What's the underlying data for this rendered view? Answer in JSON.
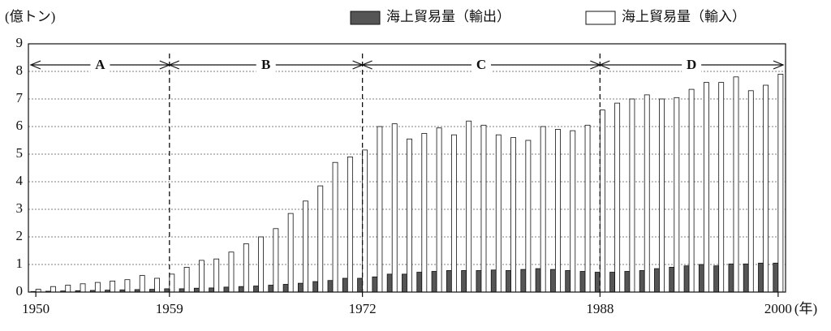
{
  "chart_data": {
    "type": "bar",
    "y_unit": "(億トン)",
    "x_unit": "(年)",
    "x": [
      1950,
      1951,
      1952,
      1953,
      1954,
      1955,
      1956,
      1957,
      1958,
      1959,
      1960,
      1961,
      1962,
      1963,
      1964,
      1965,
      1966,
      1967,
      1968,
      1969,
      1970,
      1971,
      1972,
      1973,
      1974,
      1975,
      1976,
      1977,
      1978,
      1979,
      1980,
      1981,
      1982,
      1983,
      1984,
      1985,
      1986,
      1987,
      1988,
      1989,
      1990,
      1991,
      1992,
      1993,
      1994,
      1995,
      1996,
      1997,
      1998,
      1999,
      2000
    ],
    "series": [
      {
        "name": "海上貿易量（輸出）",
        "color": "#555555",
        "values": [
          0.02,
          0.03,
          0.04,
          0.05,
          0.06,
          0.07,
          0.08,
          0.09,
          0.1,
          0.12,
          0.12,
          0.14,
          0.15,
          0.18,
          0.2,
          0.22,
          0.25,
          0.28,
          0.32,
          0.38,
          0.42,
          0.5,
          0.5,
          0.55,
          0.65,
          0.65,
          0.72,
          0.75,
          0.78,
          0.78,
          0.78,
          0.8,
          0.78,
          0.82,
          0.85,
          0.82,
          0.78,
          0.75,
          0.72,
          0.72,
          0.75,
          0.78,
          0.85,
          0.9,
          0.95,
          1.0,
          0.95,
          1.02,
          1.02,
          1.05,
          1.05
        ]
      },
      {
        "name": "海上貿易量（輸入）",
        "color": "#ffffff",
        "values": [
          0.1,
          0.2,
          0.25,
          0.3,
          0.35,
          0.4,
          0.45,
          0.6,
          0.5,
          0.65,
          0.9,
          1.15,
          1.2,
          1.45,
          1.75,
          2.0,
          2.3,
          2.85,
          3.3,
          3.85,
          4.7,
          4.9,
          5.15,
          6.0,
          6.1,
          5.55,
          5.75,
          5.95,
          5.7,
          6.2,
          6.05,
          5.7,
          5.6,
          5.5,
          6.0,
          5.9,
          5.85,
          6.05,
          6.6,
          6.85,
          7.0,
          7.15,
          7.0,
          7.05,
          7.35,
          7.6,
          7.6,
          7.8,
          7.3,
          7.5,
          7.9
        ]
      }
    ],
    "xlim": [
      1949.5,
      2000.5
    ],
    "xticks": [
      1950,
      1959,
      1972,
      1988,
      2000
    ],
    "ylim": [
      0,
      9
    ],
    "yticks": [
      0,
      1,
      2,
      3,
      4,
      5,
      6,
      7,
      8,
      9
    ],
    "grid": true,
    "annotations": [
      {
        "label": "A",
        "from": 1950,
        "to": 1959
      },
      {
        "label": "B",
        "from": 1959,
        "to": 1972
      },
      {
        "label": "C",
        "from": 1972,
        "to": 1988
      },
      {
        "label": "D",
        "from": 1988,
        "to": 2000
      }
    ]
  }
}
